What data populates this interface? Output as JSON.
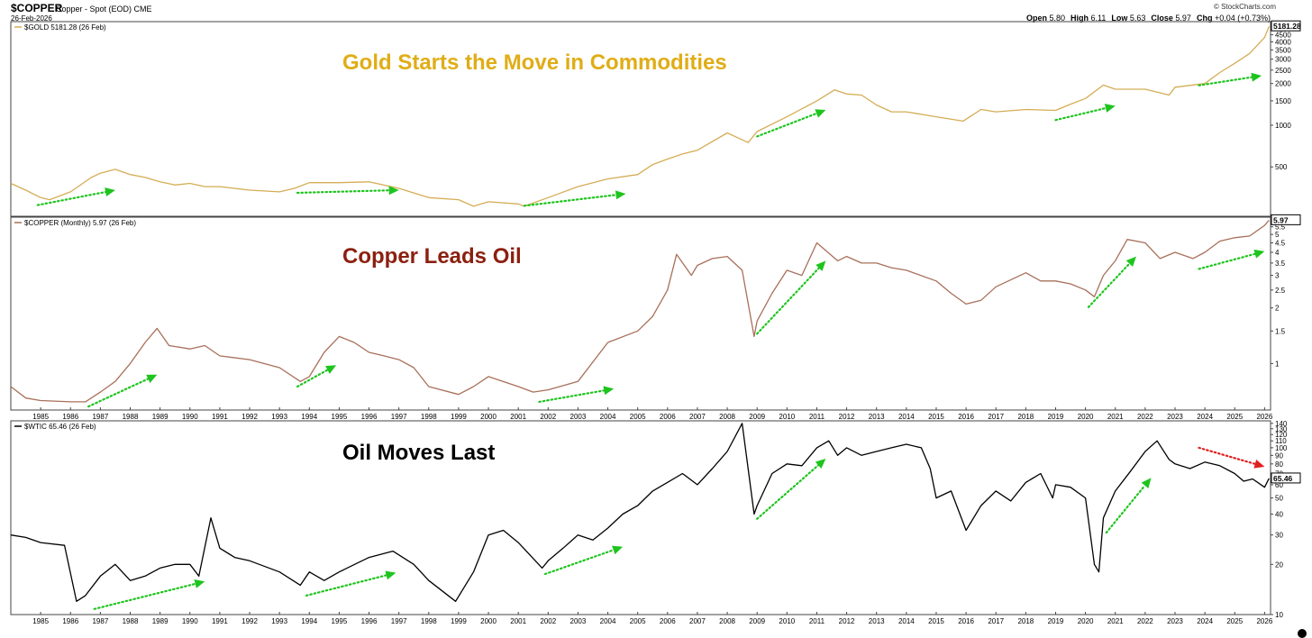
{
  "header": {
    "symbol": "$COPPER",
    "name": "Copper - Spot (EOD) CME",
    "date": "26-Feb-2026",
    "brand": "© StockCharts.com",
    "ohlc": [
      {
        "label": "Open",
        "value": "5.80"
      },
      {
        "label": "High",
        "value": "6.11"
      },
      {
        "label": "Low",
        "value": "5.63"
      },
      {
        "label": "Close",
        "value": "5.97"
      },
      {
        "label": "Chg",
        "value": "+0.04 (+0.73%)"
      }
    ]
  },
  "colors": {
    "gold": "#d4ad55",
    "copper": "#a8705a",
    "oil": "#000000",
    "arrow_up": "#1ec41e",
    "arrow_down": "#e02020",
    "gold_title": "#e0ad17",
    "copper_title": "#8b2010",
    "oil_title": "#000000"
  },
  "chart_data": [
    {
      "type": "line",
      "title": "Gold Starts the Move in Commodities",
      "legend": "$GOLD 5181.28 (26 Feb)",
      "scale": "log",
      "ylim": [
        220,
        5600
      ],
      "yticks": [
        500,
        1000,
        1500,
        2000,
        2500,
        3000,
        3500,
        4000,
        4500
      ],
      "last_value_label": "5181.28",
      "series": [
        {
          "x": [
            1984.0,
            1984.5,
            1985.0,
            1985.3,
            1986.0,
            1986.7,
            1987.0,
            1987.5,
            1988.0,
            1988.5,
            1989.0,
            1989.5,
            1990.0,
            1990.5,
            1991.0,
            1992.0,
            1993.0,
            1993.5,
            1994.0,
            1995.0,
            1996.0,
            1997.0,
            1998.0,
            1999.0,
            1999.5,
            2000.0,
            2001.0,
            2001.2,
            2002.0,
            2003.0,
            2004.0,
            2005.0,
            2005.5,
            2006.0,
            2006.5,
            2007.0,
            2008.0,
            2008.7,
            2009.0,
            2010.0,
            2011.0,
            2011.6,
            2012.0,
            2012.5,
            2013.0,
            2013.5,
            2014.0,
            2015.0,
            2015.9,
            2016.5,
            2017.0,
            2018.0,
            2019.0,
            2019.5,
            2020.0,
            2020.6,
            2021.0,
            2022.0,
            2022.8,
            2023.0,
            2024.0,
            2024.5,
            2025.0,
            2025.5,
            2026.0,
            2026.15
          ],
          "values": [
            380,
            340,
            300,
            290,
            330,
            420,
            450,
            480,
            440,
            420,
            390,
            370,
            380,
            360,
            360,
            340,
            330,
            350,
            385,
            385,
            390,
            350,
            300,
            290,
            260,
            280,
            270,
            260,
            300,
            360,
            410,
            440,
            520,
            570,
            620,
            660,
            880,
            750,
            900,
            1150,
            1500,
            1800,
            1680,
            1650,
            1400,
            1250,
            1250,
            1150,
            1070,
            1300,
            1250,
            1300,
            1280,
            1420,
            1560,
            1950,
            1820,
            1820,
            1650,
            1880,
            2000,
            2400,
            2800,
            3300,
            4300,
            5181
          ]
        }
      ],
      "arrows": [
        {
          "dir": "up",
          "from": [
            1984.9,
            265
          ],
          "to": [
            1987.5,
            340
          ]
        },
        {
          "dir": "up",
          "from": [
            1993.6,
            325
          ],
          "to": [
            1997.0,
            340
          ]
        },
        {
          "dir": "up",
          "from": [
            2001.2,
            262
          ],
          "to": [
            2004.6,
            320
          ]
        },
        {
          "dir": "up",
          "from": [
            2009.0,
            830
          ],
          "to": [
            2011.3,
            1290
          ]
        },
        {
          "dir": "up",
          "from": [
            2019.0,
            1090
          ],
          "to": [
            2021.0,
            1380
          ]
        },
        {
          "dir": "up",
          "from": [
            2023.8,
            1940
          ],
          "to": [
            2025.9,
            2280
          ]
        }
      ]
    },
    {
      "type": "line",
      "title": "Copper Leads Oil",
      "legend": "$COPPER (Monthly) 5.97 (26 Feb)",
      "scale": "log",
      "ylim": [
        0.56,
        6.2
      ],
      "yticks": [
        1.0,
        1.5,
        2.0,
        2.5,
        3.0,
        3.5,
        4.0,
        4.5,
        5.0,
        5.5
      ],
      "last_value_label": "5.97",
      "series": [
        {
          "x": [
            1984.0,
            1984.5,
            1985.0,
            1986.0,
            1986.5,
            1987.0,
            1987.5,
            1988.0,
            1988.5,
            1988.9,
            1989.3,
            1990.0,
            1990.5,
            1991.0,
            1992.0,
            1993.0,
            1993.7,
            1994.0,
            1994.5,
            1995.0,
            1995.5,
            1996.0,
            1996.5,
            1997.0,
            1997.5,
            1998.0,
            1999.0,
            1999.5,
            2000.0,
            2001.0,
            2001.5,
            2002.0,
            2003.0,
            2004.0,
            2005.0,
            2005.5,
            2006.0,
            2006.3,
            2006.8,
            2007.0,
            2007.5,
            2008.0,
            2008.5,
            2008.9,
            2009.0,
            2009.5,
            2010.0,
            2010.5,
            2011.0,
            2011.7,
            2012.0,
            2012.5,
            2013.0,
            2013.5,
            2014.0,
            2015.0,
            2015.5,
            2016.0,
            2016.5,
            2017.0,
            2018.0,
            2018.5,
            2019.0,
            2019.5,
            2020.0,
            2020.3,
            2020.6,
            2021.0,
            2021.4,
            2022.0,
            2022.5,
            2023.0,
            2023.6,
            2024.0,
            2024.5,
            2025.0,
            2025.5,
            2026.0,
            2026.15
          ],
          "values": [
            0.75,
            0.65,
            0.63,
            0.62,
            0.62,
            0.7,
            0.8,
            1.0,
            1.3,
            1.55,
            1.25,
            1.2,
            1.25,
            1.1,
            1.05,
            0.95,
            0.8,
            0.85,
            1.15,
            1.4,
            1.3,
            1.15,
            1.1,
            1.05,
            0.95,
            0.75,
            0.68,
            0.75,
            0.85,
            0.75,
            0.7,
            0.72,
            0.8,
            1.3,
            1.5,
            1.8,
            2.5,
            3.9,
            3.0,
            3.4,
            3.7,
            3.8,
            3.2,
            1.4,
            1.7,
            2.4,
            3.2,
            3.0,
            4.5,
            3.6,
            3.8,
            3.5,
            3.5,
            3.3,
            3.2,
            2.8,
            2.4,
            2.1,
            2.2,
            2.6,
            3.1,
            2.8,
            2.8,
            2.7,
            2.5,
            2.3,
            3.0,
            3.6,
            4.7,
            4.5,
            3.7,
            4.0,
            3.7,
            4.0,
            4.6,
            4.8,
            4.9,
            5.6,
            5.97
          ]
        }
      ],
      "arrows": [
        {
          "dir": "up",
          "from": [
            1986.6,
            0.585
          ],
          "to": [
            1988.9,
            0.87
          ]
        },
        {
          "dir": "up",
          "from": [
            1993.6,
            0.75
          ],
          "to": [
            1994.9,
            0.98
          ]
        },
        {
          "dir": "up",
          "from": [
            2001.7,
            0.62
          ],
          "to": [
            2004.2,
            0.73
          ]
        },
        {
          "dir": "up",
          "from": [
            2009.0,
            1.45
          ],
          "to": [
            2011.3,
            3.6
          ]
        },
        {
          "dir": "up",
          "from": [
            2020.1,
            2.02
          ],
          "to": [
            2021.7,
            3.8
          ]
        },
        {
          "dir": "up",
          "from": [
            2023.8,
            3.25
          ],
          "to": [
            2026.0,
            4.05
          ]
        }
      ]
    },
    {
      "type": "line",
      "title": "Oil Moves Last",
      "legend": "$WTIC 65.46 (26 Feb)",
      "scale": "log",
      "ylim": [
        10,
        145
      ],
      "yticks": [
        10,
        20,
        30,
        40,
        50,
        60,
        70,
        80,
        90,
        100,
        110,
        120,
        130,
        140
      ],
      "last_value_label": "65.46",
      "series": [
        {
          "x": [
            1984.0,
            1984.5,
            1985.0,
            1985.8,
            1986.2,
            1986.5,
            1987.0,
            1987.5,
            1988.0,
            1988.5,
            1989.0,
            1989.5,
            1990.0,
            1990.3,
            1990.7,
            1991.0,
            1991.5,
            1992.0,
            1993.0,
            1993.7,
            1994.0,
            1994.5,
            1995.0,
            1996.0,
            1996.8,
            1997.5,
            1998.0,
            1998.9,
            1999.5,
            2000.0,
            2000.5,
            2001.0,
            2001.8,
            2002.0,
            2002.5,
            2003.0,
            2003.5,
            2004.0,
            2004.5,
            2005.0,
            2005.5,
            2006.0,
            2006.5,
            2007.0,
            2007.5,
            2008.0,
            2008.5,
            2008.9,
            2009.0,
            2009.5,
            2010.0,
            2010.5,
            2011.0,
            2011.4,
            2011.7,
            2012.0,
            2012.5,
            2013.0,
            2013.5,
            2014.0,
            2014.5,
            2014.8,
            2015.0,
            2015.5,
            2016.0,
            2016.5,
            2017.0,
            2017.5,
            2018.0,
            2018.5,
            2018.9,
            2019.0,
            2019.5,
            2020.0,
            2020.3,
            2020.45,
            2020.6,
            2021.0,
            2021.5,
            2022.0,
            2022.4,
            2022.8,
            2023.0,
            2023.5,
            2024.0,
            2024.5,
            2025.0,
            2025.3,
            2025.6,
            2026.0,
            2026.15
          ],
          "values": [
            30,
            29,
            27,
            26,
            12,
            13,
            17,
            20,
            16,
            17,
            19,
            20,
            20,
            17,
            38,
            25,
            22,
            21,
            18,
            15,
            18,
            16,
            18,
            22,
            24,
            20,
            16,
            12,
            18,
            30,
            32,
            27,
            19,
            21,
            25,
            30,
            28,
            33,
            40,
            45,
            55,
            62,
            70,
            60,
            75,
            95,
            140,
            40,
            45,
            70,
            80,
            78,
            100,
            110,
            90,
            100,
            90,
            95,
            100,
            105,
            100,
            75,
            50,
            55,
            32,
            45,
            55,
            48,
            62,
            70,
            50,
            60,
            58,
            50,
            20,
            18,
            38,
            55,
            72,
            95,
            110,
            85,
            80,
            75,
            82,
            78,
            70,
            63,
            65,
            58,
            65.46
          ]
        }
      ],
      "arrows": [
        {
          "dir": "up",
          "from": [
            1986.8,
            10.8
          ],
          "to": [
            1990.5,
            15.8
          ]
        },
        {
          "dir": "up",
          "from": [
            1993.9,
            13.0
          ],
          "to": [
            1996.9,
            17.8
          ]
        },
        {
          "dir": "up",
          "from": [
            2001.9,
            17.5
          ],
          "to": [
            2004.5,
            25.5
          ]
        },
        {
          "dir": "up",
          "from": [
            2009.0,
            37.5
          ],
          "to": [
            2011.3,
            86
          ]
        },
        {
          "dir": "up",
          "from": [
            2020.7,
            31
          ],
          "to": [
            2022.2,
            66
          ]
        },
        {
          "dir": "down",
          "from": [
            2023.8,
            100
          ],
          "to": [
            2026.0,
            77
          ]
        }
      ]
    }
  ],
  "x_axis": {
    "range": [
      1984.0,
      2026.2
    ],
    "ticks": [
      "1985",
      "1986",
      "1987",
      "1988",
      "1989",
      "1990",
      "1991",
      "1992",
      "1993",
      "1994",
      "1995",
      "1996",
      "1997",
      "1998",
      "1999",
      "2000",
      "2001",
      "2002",
      "2003",
      "2004",
      "2005",
      "2006",
      "2007",
      "2008",
      "2009",
      "2010",
      "2011",
      "2012",
      "2013",
      "2014",
      "2015",
      "2016",
      "2017",
      "2018",
      "2019",
      "2020",
      "2021",
      "2022",
      "2023",
      "2024",
      "2025",
      "2026"
    ]
  }
}
